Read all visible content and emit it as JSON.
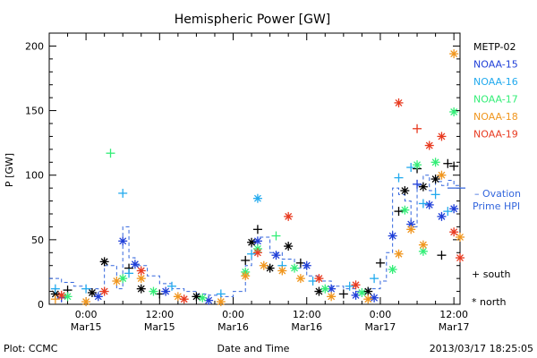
{
  "chart_data": {
    "type": "scatter",
    "title": "Hemispheric Power [GW]",
    "xlabel": "Date and Time",
    "ylabel": "P [GW]",
    "ylim": [
      0,
      210
    ],
    "xlim": [
      -6,
      61
    ],
    "x_units": "hours since 2013-03-15 00:00 UT",
    "yticks": [
      0,
      50,
      100,
      150,
      200
    ],
    "xticks": [
      {
        "x": 0,
        "line1": "0:00",
        "line2": "Mar15"
      },
      {
        "x": 12,
        "line1": "12:00",
        "line2": "Mar15"
      },
      {
        "x": 24,
        "line1": "0:00",
        "line2": "Mar16"
      },
      {
        "x": 36,
        "line1": "12:00",
        "line2": "Mar16"
      },
      {
        "x": 48,
        "line1": "0:00",
        "line2": "Mar17"
      },
      {
        "x": 60,
        "line1": "12:00",
        "line2": "Mar17"
      }
    ],
    "footer_left": "Plot: CCMC",
    "footer_right": "2013/03/17 18:25:05",
    "marker_legend": [
      {
        "symbol": "+",
        "label": "south"
      },
      {
        "symbol": "*",
        "label": "north"
      }
    ],
    "ovation_label_1": "– Ovation",
    "ovation_label_2": "Prime HPI",
    "series": [
      {
        "name": "METP-02",
        "color": "#000000",
        "points": [
          [
            -5,
            8,
            "*"
          ],
          [
            -3,
            11,
            "+"
          ],
          [
            1,
            9,
            "*"
          ],
          [
            3,
            33,
            "*"
          ],
          [
            7,
            28,
            "+"
          ],
          [
            9,
            12,
            "*"
          ],
          [
            12,
            8,
            "+"
          ],
          [
            18,
            6,
            "*"
          ],
          [
            26,
            34,
            "+"
          ],
          [
            27,
            48,
            "*"
          ],
          [
            28,
            58,
            "+"
          ],
          [
            30,
            28,
            "*"
          ],
          [
            33,
            45,
            "*"
          ],
          [
            35,
            32,
            "+"
          ],
          [
            38,
            10,
            "*"
          ],
          [
            42,
            8,
            "+"
          ],
          [
            46,
            10,
            "*"
          ],
          [
            48,
            32,
            "+"
          ],
          [
            51,
            72,
            "+"
          ],
          [
            52,
            88,
            "*"
          ],
          [
            54,
            105,
            "+"
          ],
          [
            55,
            91,
            "*"
          ],
          [
            57,
            97,
            "*"
          ],
          [
            58,
            38,
            "+"
          ],
          [
            59,
            109,
            "+"
          ],
          [
            60,
            107,
            "+"
          ]
        ]
      },
      {
        "name": "NOAA-15",
        "color": "#1f3fd8",
        "points": [
          [
            -4,
            5,
            "+"
          ],
          [
            2,
            6,
            "*"
          ],
          [
            6,
            49,
            "*"
          ],
          [
            8,
            31,
            "*"
          ],
          [
            13,
            10,
            "*"
          ],
          [
            20,
            3,
            "*"
          ],
          [
            28,
            49,
            "*"
          ],
          [
            31,
            38,
            "*"
          ],
          [
            36,
            30,
            "*"
          ],
          [
            40,
            12,
            "*"
          ],
          [
            44,
            7,
            "*"
          ],
          [
            47,
            5,
            "*"
          ],
          [
            50,
            53,
            "*"
          ],
          [
            53,
            62,
            "*"
          ],
          [
            54,
            93,
            "+"
          ],
          [
            56,
            77,
            "*"
          ],
          [
            58,
            68,
            "*"
          ],
          [
            60,
            74,
            "*"
          ]
        ]
      },
      {
        "name": "NOAA-16",
        "color": "#22aaee",
        "points": [
          [
            -5,
            12,
            "+"
          ],
          [
            0,
            12,
            "+"
          ],
          [
            6,
            86,
            "+"
          ],
          [
            7,
            24,
            "+"
          ],
          [
            14,
            14,
            "+"
          ],
          [
            22,
            8,
            "+"
          ],
          [
            27,
            39,
            "+"
          ],
          [
            28,
            82,
            "*"
          ],
          [
            32,
            30,
            "+"
          ],
          [
            37,
            18,
            "+"
          ],
          [
            43,
            14,
            "+"
          ],
          [
            47,
            20,
            "+"
          ],
          [
            51,
            98,
            "+"
          ],
          [
            53,
            106,
            "+"
          ],
          [
            55,
            78,
            "+"
          ],
          [
            57,
            85,
            "+"
          ],
          [
            59,
            72,
            "+"
          ]
        ]
      },
      {
        "name": "NOAA-17",
        "color": "#33ee77",
        "points": [
          [
            -3,
            6,
            "*"
          ],
          [
            4,
            117,
            "+"
          ],
          [
            6,
            20,
            "*"
          ],
          [
            11,
            10,
            "*"
          ],
          [
            19,
            5,
            "*"
          ],
          [
            26,
            25,
            "*"
          ],
          [
            28,
            43,
            "*"
          ],
          [
            31,
            53,
            "+"
          ],
          [
            34,
            28,
            "*"
          ],
          [
            39,
            12,
            "*"
          ],
          [
            45,
            9,
            "*"
          ],
          [
            50,
            27,
            "*"
          ],
          [
            52,
            73,
            "*"
          ],
          [
            54,
            108,
            "*"
          ],
          [
            55,
            41,
            "*"
          ],
          [
            57,
            110,
            "*"
          ],
          [
            60,
            149,
            "*"
          ]
        ]
      },
      {
        "name": "NOAA-18",
        "color": "#f0961e",
        "points": [
          [
            -5,
            4,
            "+"
          ],
          [
            0,
            2,
            "*"
          ],
          [
            5,
            18,
            "*"
          ],
          [
            9,
            20,
            "*"
          ],
          [
            15,
            6,
            "*"
          ],
          [
            22,
            2,
            "*"
          ],
          [
            26,
            22,
            "*"
          ],
          [
            29,
            30,
            "*"
          ],
          [
            32,
            26,
            "*"
          ],
          [
            35,
            20,
            "*"
          ],
          [
            40,
            6,
            "*"
          ],
          [
            46,
            4,
            "*"
          ],
          [
            51,
            39,
            "*"
          ],
          [
            53,
            58,
            "*"
          ],
          [
            55,
            46,
            "*"
          ],
          [
            58,
            100,
            "*"
          ],
          [
            60,
            194,
            "*"
          ],
          [
            61,
            52,
            "*"
          ]
        ]
      },
      {
        "name": "NOAA-19",
        "color": "#e83a20",
        "points": [
          [
            -4,
            7,
            "*"
          ],
          [
            3,
            10,
            "*"
          ],
          [
            9,
            26,
            "*"
          ],
          [
            16,
            4,
            "*"
          ],
          [
            28,
            40,
            "*"
          ],
          [
            33,
            68,
            "*"
          ],
          [
            38,
            20,
            "*"
          ],
          [
            44,
            15,
            "*"
          ],
          [
            51,
            156,
            "*"
          ],
          [
            54,
            136,
            "+"
          ],
          [
            56,
            123,
            "*"
          ],
          [
            58,
            130,
            "*"
          ],
          [
            60,
            56,
            "*"
          ],
          [
            61,
            36,
            "*"
          ]
        ]
      }
    ],
    "ovation_hpi": {
      "name": "Ovation Prime HPI",
      "color": "#3366dd",
      "values": [
        [
          -6,
          20
        ],
        [
          -4,
          17
        ],
        [
          -2,
          14
        ],
        [
          0,
          12
        ],
        [
          2,
          10
        ],
        [
          3,
          30
        ],
        [
          5,
          12
        ],
        [
          6,
          60
        ],
        [
          7,
          36
        ],
        [
          8,
          30
        ],
        [
          10,
          22
        ],
        [
          12,
          16
        ],
        [
          14,
          12
        ],
        [
          16,
          10
        ],
        [
          18,
          8
        ],
        [
          20,
          7
        ],
        [
          22,
          6
        ],
        [
          24,
          10
        ],
        [
          26,
          30
        ],
        [
          27,
          48
        ],
        [
          28,
          52
        ],
        [
          30,
          40
        ],
        [
          32,
          35
        ],
        [
          34,
          28
        ],
        [
          36,
          22
        ],
        [
          38,
          18
        ],
        [
          40,
          14
        ],
        [
          42,
          12
        ],
        [
          44,
          10
        ],
        [
          46,
          12
        ],
        [
          48,
          18
        ],
        [
          49,
          40
        ],
        [
          50,
          90
        ],
        [
          51,
          85
        ],
        [
          52,
          80
        ],
        [
          53,
          60
        ],
        [
          54,
          92
        ],
        [
          55,
          100
        ],
        [
          56,
          88
        ],
        [
          57,
          95
        ],
        [
          58,
          92
        ],
        [
          59,
          96
        ],
        [
          60,
          92
        ],
        [
          61,
          90
        ]
      ]
    }
  }
}
